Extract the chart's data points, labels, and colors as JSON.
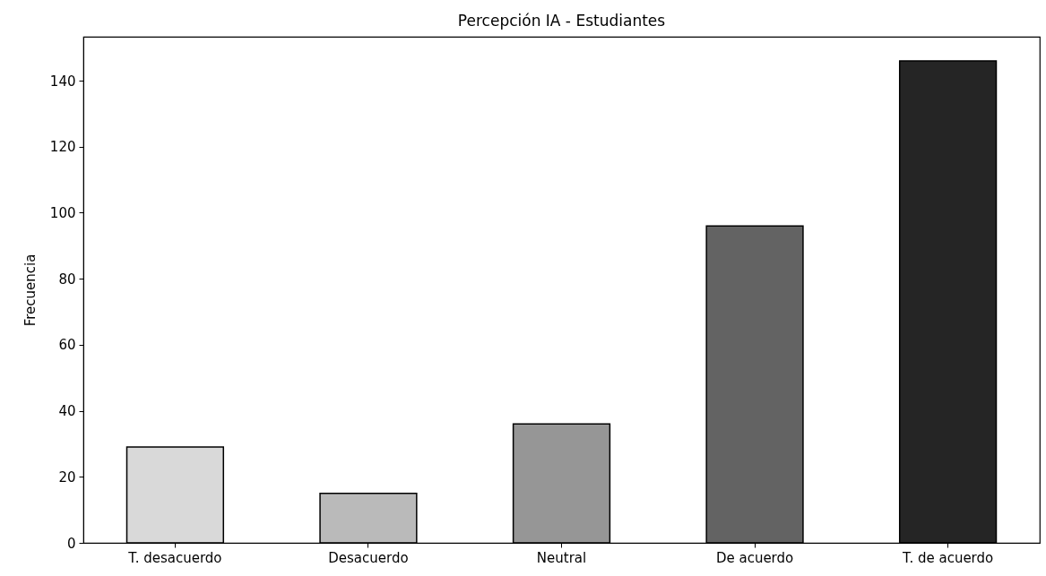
{
  "chart_data": {
    "type": "bar",
    "title": "Percepción IA - Estudiantes",
    "ylabel": "Frecuencia",
    "categories": [
      "T. desacuerdo",
      "Desacuerdo",
      "Neutral",
      "De acuerdo",
      "T. de acuerdo"
    ],
    "values": [
      29,
      15,
      36,
      96,
      146
    ],
    "colors": [
      "#d9d9d9",
      "#bababa",
      "#969696",
      "#636363",
      "#252525"
    ],
    "ylim": [
      0,
      153.3
    ],
    "yticks": [
      0,
      20,
      40,
      60,
      80,
      100,
      120,
      140
    ],
    "grid": false
  }
}
